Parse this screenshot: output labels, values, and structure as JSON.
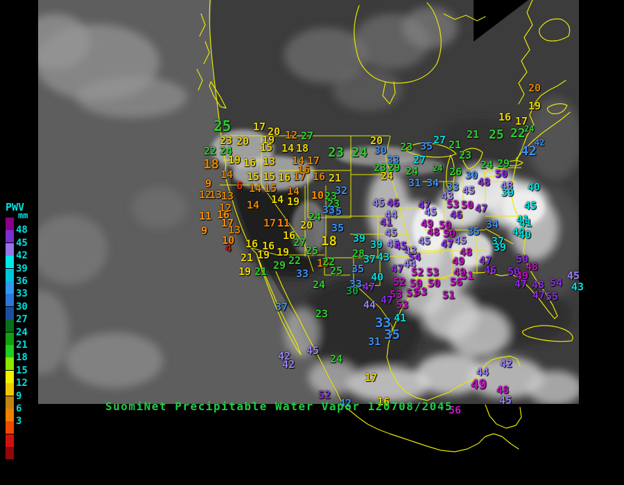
{
  "legend": {
    "title": "PWV",
    "unit": "mm",
    "label_color": "#00E0E0",
    "labels": [
      "48",
      "45",
      "42",
      "39",
      "36",
      "33",
      "30",
      "27",
      "24",
      "21",
      "18",
      "15",
      "12",
      "9",
      "6",
      "3"
    ],
    "swatches": [
      "#8A008A",
      "#7B2FD0",
      "#9575E8",
      "#00E8E8",
      "#00C8D8",
      "#2E9BF0",
      "#2A78D8",
      "#1C4FA0",
      "#0A6E1E",
      "#12A012",
      "#22CC22",
      "#8CE800",
      "#F0F000",
      "#F0C800",
      "#C08410",
      "#F08000",
      "#F04800",
      "#D01010",
      "#8E0808"
    ]
  },
  "footer": {
    "text": "SuomiNet Precipitable Water Vapor 120708/2045",
    "color": "#1ECC44"
  },
  "map": {
    "outline_color": "#E8E800",
    "background": "#000000",
    "description": "GOES infrared satellite composite of North America with yellow coast and state outlines"
  },
  "palette": {
    "rd": "#CC1010",
    "o6": "#F03000",
    "or": "#FF8C00",
    "ob": "#DD8400",
    "ye": "#E8D400",
    "gr": "#2ECC2E",
    "dg": "#0FA040",
    "bl": "#3E8EF0",
    "cy": "#00DCDC",
    "vi": "#9880F0",
    "pu": "#8A2BE2",
    "mg": "#C010C0"
  },
  "stations": [
    [
      25,
      308,
      172,
      "gr",
      21
    ],
    [
      17,
      365,
      176,
      "ye"
    ],
    [
      20,
      386,
      183,
      "ye"
    ],
    [
      12,
      411,
      188,
      "ob"
    ],
    [
      27,
      434,
      189,
      "gr"
    ],
    [
      23,
      317,
      196,
      "ye"
    ],
    [
      20,
      341,
      197,
      "ye"
    ],
    [
      19,
      378,
      195,
      "ye"
    ],
    [
      22,
      294,
      211,
      "gr"
    ],
    [
      24,
      317,
      211,
      "gr"
    ],
    [
      15,
      375,
      206,
      "ye"
    ],
    [
      14,
      406,
      207,
      "ye"
    ],
    [
      18,
      427,
      207,
      "ye"
    ],
    [
      18,
      293,
      228,
      "ob",
      19
    ],
    [
      19,
      329,
      224,
      "ye"
    ],
    [
      16,
      351,
      228,
      "ye"
    ],
    [
      13,
      379,
      226,
      "ye"
    ],
    [
      14,
      421,
      225,
      "ob"
    ],
    [
      17,
      443,
      225,
      "ob"
    ],
    [
      16,
      429,
      238,
      "ob"
    ],
    [
      14,
      318,
      245,
      "ob"
    ],
    [
      15,
      356,
      248,
      "ye"
    ],
    [
      15,
      379,
      248,
      "ye"
    ],
    [
      16,
      401,
      249,
      "ye"
    ],
    [
      17,
      423,
      248,
      "ob"
    ],
    [
      16,
      451,
      248,
      "ob"
    ],
    [
      21,
      474,
      250,
      "ye"
    ],
    [
      9,
      296,
      258,
      "or"
    ],
    [
      6,
      341,
      261,
      "o6"
    ],
    [
      14,
      359,
      265,
      "ob"
    ],
    [
      15,
      381,
      265,
      "ob"
    ],
    [
      14,
      414,
      269,
      "ob"
    ],
    [
      12,
      287,
      274,
      "ob"
    ],
    [
      13,
      302,
      274,
      "ob"
    ],
    [
      13,
      319,
      276,
      "ob"
    ],
    [
      10,
      449,
      275,
      "or"
    ],
    [
      23,
      468,
      276,
      "gr"
    ],
    [
      14,
      391,
      281,
      "ye"
    ],
    [
      19,
      414,
      284,
      "ye"
    ],
    [
      12,
      316,
      293,
      "ob"
    ],
    [
      14,
      356,
      289,
      "ob"
    ],
    [
      11,
      287,
      305,
      "or"
    ],
    [
      16,
      313,
      303,
      "or"
    ],
    [
      17,
      319,
      315,
      "or"
    ],
    [
      17,
      380,
      315,
      "ob"
    ],
    [
      11,
      400,
      315,
      "or"
    ],
    [
      9,
      290,
      326,
      "or"
    ],
    [
      13,
      329,
      325,
      "ob"
    ],
    [
      10,
      320,
      340,
      "or"
    ],
    [
      4,
      325,
      351,
      "rd"
    ],
    [
      16,
      354,
      345,
      "ye"
    ],
    [
      16,
      378,
      348,
      "ye"
    ],
    [
      16,
      408,
      333,
      "ye"
    ],
    [
      20,
      433,
      318,
      "ye"
    ],
    [
      24,
      445,
      306,
      "gr"
    ],
    [
      27,
      423,
      343,
      "gr"
    ],
    [
      25,
      441,
      355,
      "gr"
    ],
    [
      19,
      399,
      357,
      "ye"
    ],
    [
      22,
      416,
      369,
      "gr"
    ],
    [
      21,
      347,
      365,
      "ye"
    ],
    [
      19,
      371,
      361,
      "ye"
    ],
    [
      29,
      394,
      376,
      "gr"
    ],
    [
      19,
      344,
      385,
      "ye"
    ],
    [
      21,
      367,
      385,
      "gr"
    ],
    [
      16,
      457,
      373,
      "ob"
    ],
    [
      33,
      427,
      388,
      "bl"
    ],
    [
      32,
      483,
      268,
      "bl"
    ],
    [
      23,
      472,
      287,
      "gr"
    ],
    [
      35,
      475,
      298,
      "bl"
    ],
    [
      20,
      534,
      196,
      "ye"
    ],
    [
      23,
      473,
      211,
      "gr",
      19
    ],
    [
      24,
      507,
      211,
      "gr",
      19
    ],
    [
      30,
      540,
      210,
      "bl"
    ],
    [
      23,
      577,
      205,
      "gr"
    ],
    [
      27,
      596,
      224,
      "cy"
    ],
    [
      35,
      606,
      204,
      "bl"
    ],
    [
      27,
      625,
      195,
      "cy"
    ],
    [
      33,
      558,
      224,
      "bl"
    ],
    [
      23,
      539,
      235,
      "gr"
    ],
    [
      29,
      559,
      235,
      "gr"
    ],
    [
      24,
      585,
      240,
      "gr"
    ],
    [
      24,
      549,
      247,
      "ye"
    ],
    [
      24,
      624,
      237,
      "gr",
      12
    ],
    [
      26,
      648,
      241,
      "gr"
    ],
    [
      31,
      589,
      257,
      "bl"
    ],
    [
      34,
      615,
      257,
      "bl"
    ],
    [
      33,
      644,
      263,
      "bl"
    ],
    [
      43,
      636,
      276,
      "vi"
    ],
    [
      21,
      647,
      202,
      "gr"
    ],
    [
      21,
      673,
      187,
      "gr"
    ],
    [
      23,
      662,
      217,
      "gr"
    ],
    [
      25,
      705,
      186,
      "gr",
      18
    ],
    [
      22,
      736,
      184,
      "gr",
      18
    ],
    [
      24,
      756,
      180,
      "gr",
      12
    ],
    [
      16,
      719,
      162,
      "ye"
    ],
    [
      17,
      743,
      168,
      "ye"
    ],
    [
      19,
      762,
      146,
      "ye"
    ],
    [
      20,
      762,
      120,
      "ob"
    ],
    [
      42,
      771,
      200,
      "bl",
      12
    ],
    [
      42,
      751,
      209,
      "bl",
      19
    ],
    [
      24,
      693,
      231,
      "gr"
    ],
    [
      29,
      717,
      229,
      "gr"
    ],
    [
      50,
      714,
      244,
      "pu"
    ],
    [
      48,
      689,
      256,
      "pu"
    ],
    [
      30,
      671,
      246,
      "bl"
    ],
    [
      45,
      667,
      268,
      "vi"
    ],
    [
      48,
      722,
      261,
      "vi"
    ],
    [
      39,
      723,
      271,
      "cy"
    ],
    [
      40,
      761,
      263,
      "cy"
    ],
    [
      53,
      644,
      288,
      "mg"
    ],
    [
      50,
      665,
      289,
      "mg"
    ],
    [
      47,
      685,
      294,
      "pu"
    ],
    [
      46,
      649,
      303,
      "pu"
    ],
    [
      45,
      756,
      290,
      "cy"
    ],
    [
      41,
      745,
      310,
      "cy"
    ],
    [
      40,
      739,
      328,
      "cy"
    ],
    [
      34,
      701,
      317,
      "bl"
    ],
    [
      41,
      749,
      315,
      "cy"
    ],
    [
      35,
      674,
      327,
      "bl"
    ],
    [
      40,
      748,
      332,
      "cy"
    ],
    [
      45,
      655,
      340,
      "vi"
    ],
    [
      37,
      709,
      341,
      "cy"
    ],
    [
      39,
      712,
      350,
      "cy"
    ],
    [
      48,
      663,
      357,
      "mg"
    ],
    [
      49,
      652,
      370,
      "mg"
    ],
    [
      47,
      691,
      369,
      "pu"
    ],
    [
      50,
      744,
      367,
      "pu"
    ],
    [
      46,
      698,
      383,
      "pu"
    ],
    [
      50,
      732,
      385,
      "pu"
    ],
    [
      49,
      744,
      391,
      "mg"
    ],
    [
      48,
      758,
      378,
      "mg"
    ],
    [
      47,
      742,
      403,
      "pu"
    ],
    [
      48,
      767,
      404,
      "pu"
    ],
    [
      54,
      793,
      401,
      "pu"
    ],
    [
      47,
      768,
      419,
      "pu"
    ],
    [
      55,
      787,
      421,
      "pu"
    ],
    [
      51,
      665,
      391,
      "mg"
    ],
    [
      45,
      818,
      391,
      "vi"
    ],
    [
      43,
      824,
      407,
      "cy"
    ],
    [
      33,
      465,
      296,
      "bl"
    ],
    [
      35,
      478,
      322,
      "bl"
    ],
    [
      18,
      463,
      339,
      "ye",
      19
    ],
    [
      39,
      509,
      337,
      "cy"
    ],
    [
      39,
      534,
      346,
      "cy"
    ],
    [
      28,
      508,
      359,
      "gr"
    ],
    [
      37,
      524,
      367,
      "cy"
    ],
    [
      43,
      544,
      364,
      "cy"
    ],
    [
      22,
      465,
      371,
      "gr"
    ],
    [
      25,
      476,
      384,
      "gr"
    ],
    [
      35,
      507,
      381,
      "bl"
    ],
    [
      40,
      535,
      393,
      "cy"
    ],
    [
      33,
      504,
      403,
      "bl"
    ],
    [
      45,
      537,
      286,
      "vi"
    ],
    [
      46,
      558,
      286,
      "pu"
    ],
    [
      44,
      555,
      303,
      "vi"
    ],
    [
      41,
      548,
      314,
      "pu"
    ],
    [
      45,
      555,
      329,
      "vi"
    ],
    [
      45,
      558,
      345,
      "vi"
    ],
    [
      43,
      583,
      355,
      "vi"
    ],
    [
      47,
      603,
      289,
      "pu"
    ],
    [
      45,
      612,
      299,
      "vi"
    ],
    [
      49,
      607,
      316,
      "mg"
    ],
    [
      50,
      633,
      318,
      "mg"
    ],
    [
      48,
      616,
      328,
      "mg"
    ],
    [
      50,
      639,
      330,
      "mg"
    ],
    [
      45,
      603,
      341,
      "vi"
    ],
    [
      45,
      569,
      348,
      "pu"
    ],
    [
      47,
      636,
      345,
      "pu"
    ],
    [
      54,
      589,
      364,
      "pu"
    ],
    [
      44,
      582,
      374,
      "vi"
    ],
    [
      47,
      564,
      381,
      "pu"
    ],
    [
      52,
      593,
      386,
      "mg"
    ],
    [
      53,
      615,
      386,
      "mg"
    ],
    [
      49,
      654,
      386,
      "mg"
    ],
    [
      52,
      567,
      400,
      "mg"
    ],
    [
      50,
      591,
      402,
      "mg"
    ],
    [
      50,
      617,
      402,
      "mg"
    ],
    [
      56,
      649,
      400,
      "mg"
    ],
    [
      53,
      586,
      416,
      "mg"
    ],
    [
      51,
      638,
      419,
      "mg"
    ],
    [
      24,
      451,
      404,
      "gr"
    ],
    [
      30,
      499,
      413,
      "dg"
    ],
    [
      47,
      523,
      407,
      "pu"
    ],
    [
      53,
      562,
      418,
      "mg"
    ],
    [
      53,
      598,
      414,
      "mg"
    ],
    [
      44,
      524,
      433,
      "vi"
    ],
    [
      47,
      549,
      426,
      "pu"
    ],
    [
      53,
      571,
      433,
      "mg"
    ],
    [
      41,
      568,
      452,
      "cy"
    ],
    [
      23,
      455,
      446,
      "gr"
    ],
    [
      33,
      541,
      457,
      "bl",
      19
    ],
    [
      35,
      554,
      474,
      "bl",
      19
    ],
    [
      31,
      531,
      486,
      "bl"
    ],
    [
      45,
      442,
      499,
      "vi"
    ],
    [
      24,
      476,
      511,
      "gr"
    ],
    [
      37,
      397,
      436,
      "bl"
    ],
    [
      42,
      401,
      507,
      "vi"
    ],
    [
      42,
      407,
      519,
      "vi"
    ],
    [
      17,
      526,
      538,
      "ye"
    ],
    [
      52,
      459,
      563,
      "pu"
    ],
    [
      56,
      647,
      585,
      "mg"
    ],
    [
      42,
      721,
      518,
      "vi"
    ],
    [
      44,
      687,
      530,
      "vi"
    ],
    [
      49,
      679,
      546,
      "mg",
      19
    ],
    [
      48,
      716,
      556,
      "mg"
    ],
    [
      45,
      720,
      571,
      "vi"
    ],
    [
      42,
      489,
      575,
      "bl"
    ],
    [
      16,
      544,
      573,
      "ye"
    ]
  ]
}
